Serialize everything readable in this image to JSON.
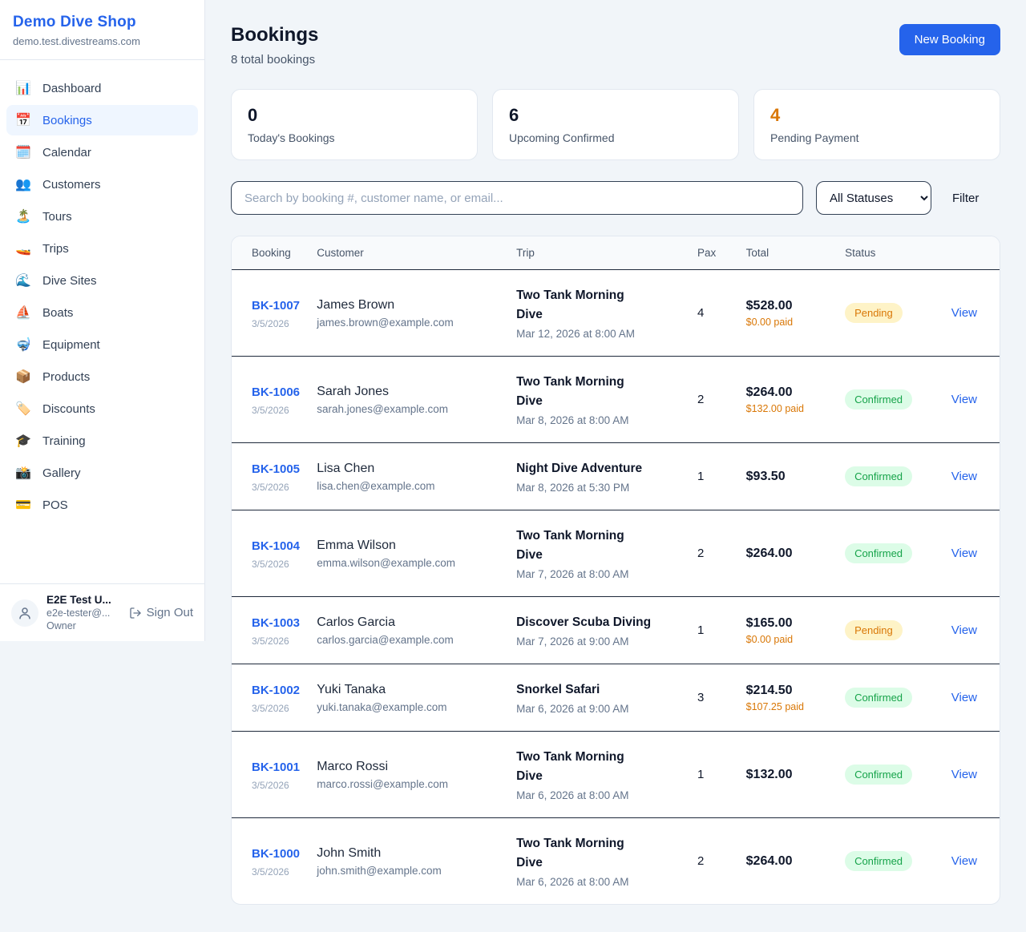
{
  "brand": {
    "name": "Demo Dive Shop",
    "domain": "demo.test.divestreams.com"
  },
  "sidebar": {
    "items": [
      {
        "label": "Dashboard",
        "icon": "📊",
        "icon_name": "bar-chart-icon",
        "active": false
      },
      {
        "label": "Bookings",
        "icon": "📅",
        "icon_name": "calendar-icon",
        "active": true
      },
      {
        "label": "Calendar",
        "icon": "🗓️",
        "icon_name": "spiral-calendar-icon",
        "active": false
      },
      {
        "label": "Customers",
        "icon": "👥",
        "icon_name": "people-icon",
        "active": false
      },
      {
        "label": "Tours",
        "icon": "🏝️",
        "icon_name": "island-icon",
        "active": false
      },
      {
        "label": "Trips",
        "icon": "🚤",
        "icon_name": "speedboat-icon",
        "active": false
      },
      {
        "label": "Dive Sites",
        "icon": "🌊",
        "icon_name": "wave-icon",
        "active": false
      },
      {
        "label": "Boats",
        "icon": "⛵",
        "icon_name": "sailboat-icon",
        "active": false
      },
      {
        "label": "Equipment",
        "icon": "🤿",
        "icon_name": "diving-mask-icon",
        "active": false
      },
      {
        "label": "Products",
        "icon": "📦",
        "icon_name": "package-icon",
        "active": false
      },
      {
        "label": "Discounts",
        "icon": "🏷️",
        "icon_name": "label-tag-icon",
        "active": false
      },
      {
        "label": "Training",
        "icon": "🎓",
        "icon_name": "graduation-cap-icon",
        "active": false
      },
      {
        "label": "Gallery",
        "icon": "📸",
        "icon_name": "camera-icon",
        "active": false
      },
      {
        "label": "POS",
        "icon": "💳",
        "icon_name": "credit-card-icon",
        "active": false
      }
    ]
  },
  "user": {
    "name": "E2E Test U...",
    "email": "e2e-tester@...",
    "role": "Owner",
    "sign_out_label": "Sign Out"
  },
  "header": {
    "title": "Bookings",
    "subtitle": "8 total bookings",
    "new_booking_label": "New Booking"
  },
  "stats": [
    {
      "value": "0",
      "label": "Today's Bookings",
      "value_color": "#0f172a"
    },
    {
      "value": "6",
      "label": "Upcoming Confirmed",
      "value_color": "#0f172a"
    },
    {
      "value": "4",
      "label": "Pending Payment",
      "value_color": "#d97706"
    }
  ],
  "filters": {
    "search_placeholder": "Search by booking #, customer name, or email...",
    "status_selected": "All Statuses",
    "filter_label": "Filter"
  },
  "table": {
    "columns": [
      "Booking",
      "Customer",
      "Trip",
      "Pax",
      "Total",
      "Status",
      ""
    ],
    "view_label": "View",
    "rows": [
      {
        "id": "BK-1007",
        "date": "3/5/2026",
        "customer": "James Brown",
        "email": "james.brown@example.com",
        "trip": "Two Tank Morning Dive",
        "trip_datetime": "Mar 12, 2026 at 8:00 AM",
        "pax": "4",
        "total": "$528.00",
        "paid": "$0.00 paid",
        "status": "Pending"
      },
      {
        "id": "BK-1006",
        "date": "3/5/2026",
        "customer": "Sarah Jones",
        "email": "sarah.jones@example.com",
        "trip": "Two Tank Morning Dive",
        "trip_datetime": "Mar 8, 2026 at 8:00 AM",
        "pax": "2",
        "total": "$264.00",
        "paid": "$132.00 paid",
        "status": "Confirmed"
      },
      {
        "id": "BK-1005",
        "date": "3/5/2026",
        "customer": "Lisa Chen",
        "email": "lisa.chen@example.com",
        "trip": "Night Dive Adventure",
        "trip_datetime": "Mar 8, 2026 at 5:30 PM",
        "pax": "1",
        "total": "$93.50",
        "paid": null,
        "status": "Confirmed"
      },
      {
        "id": "BK-1004",
        "date": "3/5/2026",
        "customer": "Emma Wilson",
        "email": "emma.wilson@example.com",
        "trip": "Two Tank Morning Dive",
        "trip_datetime": "Mar 7, 2026 at 8:00 AM",
        "pax": "2",
        "total": "$264.00",
        "paid": null,
        "status": "Confirmed"
      },
      {
        "id": "BK-1003",
        "date": "3/5/2026",
        "customer": "Carlos Garcia",
        "email": "carlos.garcia@example.com",
        "trip": "Discover Scuba Diving",
        "trip_datetime": "Mar 7, 2026 at 9:00 AM",
        "pax": "1",
        "total": "$165.00",
        "paid": "$0.00 paid",
        "status": "Pending"
      },
      {
        "id": "BK-1002",
        "date": "3/5/2026",
        "customer": "Yuki Tanaka",
        "email": "yuki.tanaka@example.com",
        "trip": "Snorkel Safari",
        "trip_datetime": "Mar 6, 2026 at 9:00 AM",
        "pax": "3",
        "total": "$214.50",
        "paid": "$107.25 paid",
        "status": "Confirmed"
      },
      {
        "id": "BK-1001",
        "date": "3/5/2026",
        "customer": "Marco Rossi",
        "email": "marco.rossi@example.com",
        "trip": "Two Tank Morning Dive",
        "trip_datetime": "Mar 6, 2026 at 8:00 AM",
        "pax": "1",
        "total": "$132.00",
        "paid": null,
        "status": "Confirmed"
      },
      {
        "id": "BK-1000",
        "date": "3/5/2026",
        "customer": "John Smith",
        "email": "john.smith@example.com",
        "trip": "Two Tank Morning Dive",
        "trip_datetime": "Mar 6, 2026 at 8:00 AM",
        "pax": "2",
        "total": "$264.00",
        "paid": null,
        "status": "Confirmed"
      }
    ]
  },
  "colors": {
    "accent": "#2563eb",
    "pending_text": "#d97706",
    "pending_bg": "#fef3c7",
    "confirmed_text": "#16a34a",
    "confirmed_bg": "#dcfce7",
    "paid_text": "#d97706"
  }
}
